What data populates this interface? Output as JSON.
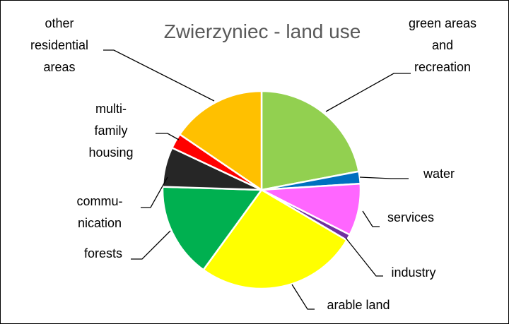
{
  "chart_data": {
    "type": "pie",
    "title": "Zwierzyniec - land use",
    "categories": [
      "green areas\nand\nrecreation",
      "water",
      "services",
      "industry",
      "arable land",
      "forests",
      "commu-\nnication",
      "multi-\nfamily\nhousing",
      "other\nresidential\nareas"
    ],
    "values": [
      22,
      2,
      8.5,
      1,
      26.5,
      15.5,
      6.5,
      2.5,
      15.5
    ],
    "colors": [
      "#92d050",
      "#0070c0",
      "#ff66ff",
      "#7030a0",
      "#ffff00",
      "#00b050",
      "#262626",
      "#ff0000",
      "#ffc000"
    ]
  }
}
